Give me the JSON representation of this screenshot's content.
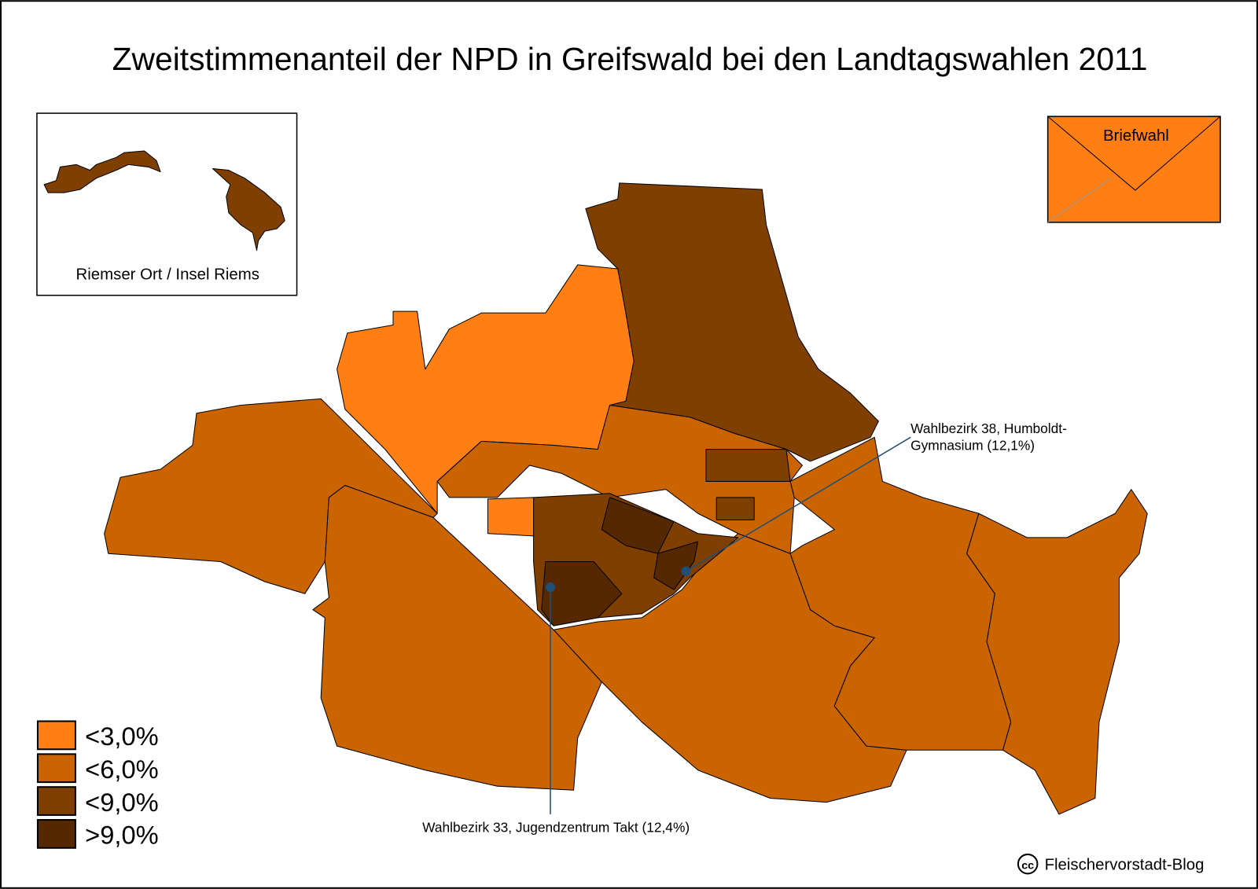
{
  "title": "Zweitstimmenanteil der NPD in Greifswald bei den Landtagswahlen 2011",
  "inset": {
    "label": "Riemser Ort / Insel Riems"
  },
  "postal_vote": {
    "label": "Briefwahl",
    "color": "#FF7F14"
  },
  "legend": [
    {
      "label": "<3,0%",
      "color": "#FF7F14"
    },
    {
      "label": "<6,0%",
      "color": "#C96400"
    },
    {
      "label": "<9,0%",
      "color": "#7F3F00"
    },
    {
      "label": ">9,0%",
      "color": "#552800"
    }
  ],
  "annotations": [
    {
      "lines": [
        "Wahlbezirk 38, Humboldt-",
        "Gymnasium (12,1%)"
      ]
    },
    {
      "lines": [
        "Wahlbezirk 33, Jugendzentrum Takt (12,4%)"
      ]
    }
  ],
  "credit_icon": "cc",
  "credit": "Fleischervorstadt-Blog"
}
